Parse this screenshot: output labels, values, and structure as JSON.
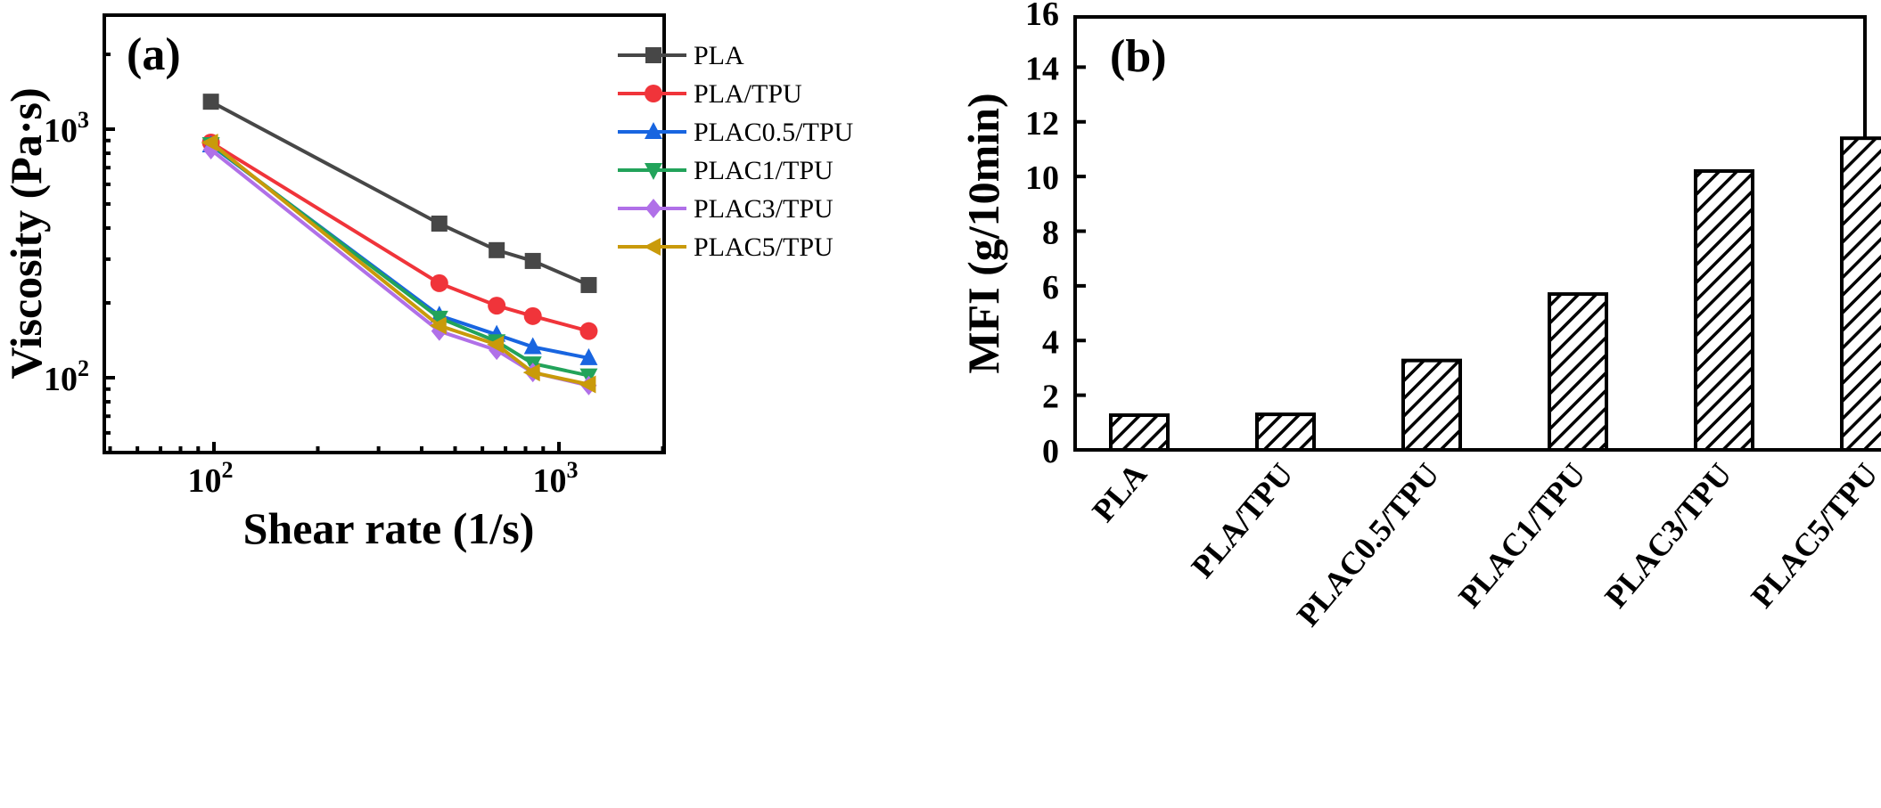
{
  "chart_data": [
    {
      "panel": "(a)",
      "type": "line",
      "xlabel": "Shear rate (1/s)",
      "ylabel": "Viscosity (Pa·s)",
      "xscale": "log",
      "yscale": "log",
      "xlim": [
        50,
        2000
      ],
      "ylim": [
        53,
        3000
      ],
      "xticks": [
        {
          "value": 100,
          "base": "10",
          "exp": "2"
        },
        {
          "value": 1000,
          "base": "10",
          "exp": "3"
        }
      ],
      "yticks": [
        {
          "value": 100,
          "base": "10",
          "exp": "2"
        },
        {
          "value": 1000,
          "base": "10",
          "exp": "3"
        }
      ],
      "legend_position": "top-right",
      "x": [
        98,
        450,
        660,
        840,
        1220
      ],
      "series": [
        {
          "name": "PLA",
          "color": "#474747",
          "marker": "square",
          "values": [
            1290,
            417,
            326,
            295,
            236
          ]
        },
        {
          "name": "PLA/TPU",
          "color": "#f0343a",
          "marker": "circle",
          "values": [
            884,
            240,
            195,
            177,
            154
          ]
        },
        {
          "name": "PLAC0.5/TPU",
          "color": "#1865e0",
          "marker": "triangle-up",
          "values": [
            862,
            178,
            149,
            133,
            120
          ]
        },
        {
          "name": "PLAC1/TPU",
          "color": "#22a35a",
          "marker": "triangle-down",
          "values": [
            869,
            174,
            140,
            114,
            102
          ]
        },
        {
          "name": "PLAC3/TPU",
          "color": "#b070e8",
          "marker": "diamond",
          "values": [
            827,
            154,
            129,
            105,
            93
          ]
        },
        {
          "name": "PLAC5/TPU",
          "color": "#c99a0a",
          "marker": "triangle-left",
          "values": [
            884,
            162,
            136,
            105,
            94
          ]
        }
      ]
    },
    {
      "panel": "(b)",
      "type": "bar",
      "xlabel": "",
      "ylabel": "MFI (g/10min)",
      "ylim": [
        0,
        16
      ],
      "yticks": [
        "0",
        "2",
        "4",
        "6",
        "8",
        "10",
        "12",
        "14",
        "16"
      ],
      "categories": [
        "PLA",
        "PLA/TPU",
        "PLAC0.5/TPU",
        "PLAC1/TPU",
        "PLAC3/TPU",
        "PLAC5/TPU"
      ],
      "values": [
        1.27,
        1.3,
        3.27,
        5.7,
        10.2,
        11.4
      ],
      "bar_fill": "hatched",
      "bar_color": "#000000"
    }
  ]
}
